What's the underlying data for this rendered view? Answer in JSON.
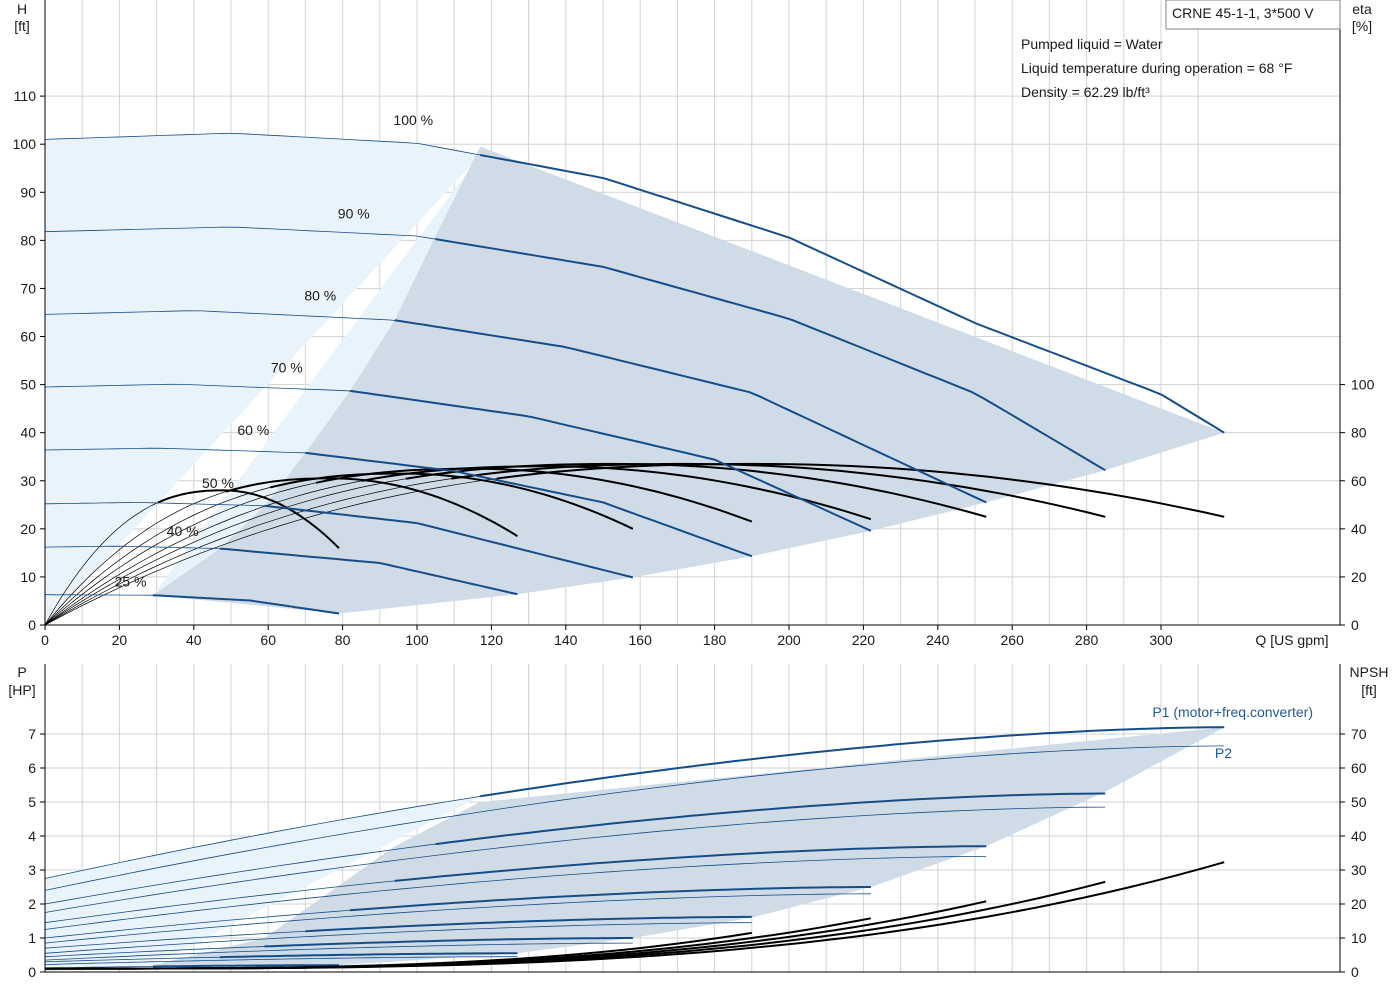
{
  "colors": {
    "curve_blue": "#154d88",
    "region_light": "#e9f3fb",
    "region_dark": "#cfdce8",
    "grid": "#d3d3d3",
    "black": "#000000"
  },
  "info": {
    "model": "CRNE 45-1-1, 3*500 V",
    "liquid": "Pumped liquid = Water",
    "temperature": "Liquid temperature during operation = 68 °F",
    "density": "Density = 62.29 lb/ft³"
  },
  "chart_data": [
    {
      "type": "line",
      "id": "head",
      "xlabel": "Q [US gpm]",
      "ylabel": [
        "H",
        "[ft]"
      ],
      "y2label": [
        "eta",
        "[%]"
      ],
      "xlim": [
        0,
        348
      ],
      "ylim": [
        0,
        120
      ],
      "y2lim": [
        0,
        120
      ],
      "grid": true,
      "xticks": [
        0,
        20,
        40,
        60,
        80,
        100,
        120,
        140,
        160,
        180,
        200,
        220,
        240,
        260,
        280,
        300
      ],
      "yticks": [
        0,
        10,
        20,
        30,
        40,
        50,
        60,
        70,
        80,
        90,
        100,
        110
      ],
      "y2ticks": [
        0,
        20,
        40,
        60,
        80,
        100
      ],
      "speed_labels": [
        {
          "text": "100 %",
          "x": 99,
          "y": 104
        },
        {
          "text": "90 %",
          "x": 83,
          "y": 84.5
        },
        {
          "text": "80 %",
          "x": 74,
          "y": 67.5
        },
        {
          "text": "70 %",
          "x": 65,
          "y": 52.5
        },
        {
          "text": "60 %",
          "x": 56,
          "y": 39.5
        },
        {
          "text": "50 %",
          "x": 46.5,
          "y": 28.5
        },
        {
          "text": "40 %",
          "x": 37,
          "y": 18.5
        },
        {
          "text": "25 %",
          "x": 23,
          "y": 8
        }
      ],
      "series": [
        {
          "speed": 100,
          "kind": "head",
          "h0": 101,
          "qmax": 317,
          "qpeak": 50,
          "qop": 117,
          "points": [
            [
              0,
              101
            ],
            [
              50,
              102.3
            ],
            [
              100,
              100.2
            ],
            [
              150,
              93
            ],
            [
              200,
              80.6
            ],
            [
              250,
              62.8
            ],
            [
              300,
              48
            ],
            [
              317,
              40
            ]
          ]
        },
        {
          "speed": 90,
          "kind": "head",
          "h0": 81.8,
          "qmax": 285,
          "qpeak": 45,
          "qop": 105,
          "points": [
            [
              0,
              81.8
            ],
            [
              50,
              82.8
            ],
            [
              100,
              80.9
            ],
            [
              150,
              74.5
            ],
            [
              200,
              63.7
            ],
            [
              250,
              48.2
            ],
            [
              285,
              32.2
            ]
          ]
        },
        {
          "speed": 80,
          "kind": "head",
          "h0": 64.6,
          "qmax": 253,
          "qpeak": 40,
          "qop": 94,
          "points": [
            [
              0,
              64.6
            ],
            [
              40,
              65.4
            ],
            [
              94,
              63.4
            ],
            [
              140,
              57.8
            ],
            [
              190,
              48.3
            ],
            [
              253,
              25.5
            ]
          ]
        },
        {
          "speed": 70,
          "kind": "head",
          "h0": 49.5,
          "qmax": 222,
          "qpeak": 35,
          "qop": 82,
          "points": [
            [
              0,
              49.5
            ],
            [
              35,
              50.1
            ],
            [
              82,
              48.7
            ],
            [
              130,
              43.4
            ],
            [
              180,
              34.4
            ],
            [
              222,
              19.6
            ]
          ]
        },
        {
          "speed": 60,
          "kind": "head",
          "h0": 36.4,
          "qmax": 190,
          "qpeak": 30,
          "qop": 70,
          "points": [
            [
              0,
              36.4
            ],
            [
              30,
              36.8
            ],
            [
              70,
              35.8
            ],
            [
              110,
              32
            ],
            [
              150,
              25.5
            ],
            [
              190,
              14.3
            ]
          ]
        },
        {
          "speed": 50,
          "kind": "head",
          "h0": 25.2,
          "qmax": 158,
          "qpeak": 25,
          "qop": 59,
          "points": [
            [
              0,
              25.2
            ],
            [
              25,
              25.5
            ],
            [
              59,
              24.8
            ],
            [
              100,
              21.2
            ],
            [
              158,
              9.9
            ]
          ]
        },
        {
          "speed": 40,
          "kind": "head",
          "h0": 16.2,
          "qmax": 127,
          "qpeak": 20,
          "qop": 47,
          "points": [
            [
              0,
              16.2
            ],
            [
              20,
              16.4
            ],
            [
              47,
              15.9
            ],
            [
              90,
              12.9
            ],
            [
              127,
              6.4
            ]
          ]
        },
        {
          "speed": 25,
          "kind": "head",
          "h0": 6.3,
          "qmax": 79,
          "qpeak": 12.5,
          "qop": 29,
          "points": [
            [
              0,
              6.3
            ],
            [
              29,
              6.2
            ],
            [
              55,
              5.1
            ],
            [
              79,
              2.4
            ]
          ]
        }
      ],
      "efficiency_curves": [
        {
          "speed": 100,
          "qmax": 317,
          "eta_peak": 67,
          "q_best": 192,
          "eta_end": 45
        },
        {
          "speed": 90,
          "qmax": 285,
          "eta_peak": 67,
          "q_best": 173,
          "eta_end": 45
        },
        {
          "speed": 80,
          "qmax": 253,
          "eta_peak": 67,
          "q_best": 154,
          "eta_end": 45
        },
        {
          "speed": 70,
          "qmax": 222,
          "eta_peak": 66,
          "q_best": 135,
          "eta_end": 44
        },
        {
          "speed": 60,
          "qmax": 190,
          "eta_peak": 65,
          "q_best": 115,
          "eta_end": 43
        },
        {
          "speed": 50,
          "qmax": 158,
          "eta_peak": 63,
          "q_best": 96,
          "eta_end": 40
        },
        {
          "speed": 40,
          "qmax": 127,
          "eta_peak": 61,
          "q_best": 77,
          "eta_end": 37
        },
        {
          "speed": 25,
          "qmax": 79,
          "eta_peak": 56,
          "q_best": 48,
          "eta_end": 32
        }
      ],
      "operating_region": [
        [
          29,
          6.2
        ],
        [
          47,
          15.9
        ],
        [
          59,
          24.8
        ],
        [
          70,
          35.8
        ],
        [
          82,
          48.7
        ],
        [
          94,
          63.4
        ],
        [
          105,
          80.9
        ],
        [
          117,
          99.5
        ],
        [
          317,
          40
        ],
        [
          285,
          32.2
        ],
        [
          253,
          25.5
        ],
        [
          222,
          19.6
        ],
        [
          190,
          14.3
        ],
        [
          158,
          9.9
        ],
        [
          127,
          6.4
        ],
        [
          79,
          2.4
        ]
      ]
    },
    {
      "type": "line",
      "id": "power",
      "xlabel": "",
      "ylabel": [
        "P",
        "[HP]"
      ],
      "y2label": [
        "NPSH",
        "[ft]"
      ],
      "xlim": [
        0,
        348
      ],
      "ylim": [
        0,
        8
      ],
      "y2lim": [
        0,
        80
      ],
      "grid": true,
      "xticks": [
        0,
        20,
        40,
        60,
        80,
        100,
        120,
        140,
        160,
        180,
        200,
        220,
        240,
        260,
        280,
        300
      ],
      "yticks": [
        0,
        1,
        2,
        3,
        4,
        5,
        6,
        7
      ],
      "y2ticks": [
        0,
        10,
        20,
        30,
        40,
        50,
        60,
        70
      ],
      "labels": {
        "p1": "P1 (motor+freq.converter)",
        "p2": "P2"
      },
      "series": [
        {
          "name": "P1 (motor+freq.converter)",
          "speed": 100,
          "p_start": 2.75,
          "p_end": 7.2,
          "qop": 117,
          "qmax": 317
        },
        {
          "name": "P2",
          "speed": 100,
          "p_start": 2.4,
          "p_end": 6.65,
          "qmax": 317
        },
        {
          "speed": 90,
          "kind": "P1",
          "p_start": 2.0,
          "p_end": 5.25,
          "qop": 105,
          "qmax": 285
        },
        {
          "speed": 90,
          "kind": "P2",
          "p_start": 1.75,
          "p_end": 4.85,
          "qmax": 285
        },
        {
          "speed": 80,
          "kind": "P1",
          "p_start": 1.45,
          "p_end": 3.7,
          "qop": 94,
          "qmax": 253
        },
        {
          "speed": 80,
          "kind": "P2",
          "p_start": 1.25,
          "p_end": 3.4,
          "qmax": 253
        },
        {
          "speed": 70,
          "kind": "P1",
          "p_start": 1.0,
          "p_end": 2.5,
          "qop": 82,
          "qmax": 222
        },
        {
          "speed": 70,
          "kind": "P2",
          "p_start": 0.85,
          "p_end": 2.3,
          "qmax": 222
        },
        {
          "speed": 60,
          "kind": "P1",
          "p_start": 0.7,
          "p_end": 1.62,
          "qop": 70,
          "qmax": 190
        },
        {
          "speed": 60,
          "kind": "P2",
          "p_start": 0.55,
          "p_end": 1.45,
          "qmax": 190
        },
        {
          "speed": 50,
          "kind": "P1",
          "p_start": 0.45,
          "p_end": 1.0,
          "qop": 59,
          "qmax": 158
        },
        {
          "speed": 50,
          "kind": "P2",
          "p_start": 0.35,
          "p_end": 0.85,
          "qmax": 158
        },
        {
          "speed": 40,
          "kind": "P1",
          "p_start": 0.3,
          "p_end": 0.55,
          "qop": 47,
          "qmax": 127
        },
        {
          "speed": 40,
          "kind": "P2",
          "p_start": 0.22,
          "p_end": 0.45,
          "qmax": 127
        },
        {
          "speed": 25,
          "kind": "P1",
          "p_start": 0.12,
          "p_end": 0.2,
          "qop": 29,
          "qmax": 79
        },
        {
          "speed": 25,
          "kind": "P2",
          "p_start": 0.08,
          "p_end": 0.15,
          "qmax": 79
        }
      ],
      "npsh_curves": [
        {
          "qmax": 317,
          "npsh_end": 32.3,
          "npsh_at_200": 10.6
        },
        {
          "qmax": 285,
          "npsh_end": 26.5,
          "npsh_at_200": 12
        },
        {
          "qmax": 253,
          "npsh_end": 20.8,
          "npsh_at_200": 11
        },
        {
          "qmax": 222,
          "npsh_end": 15.8,
          "npsh_at_200": 11
        },
        {
          "qmax": 190,
          "npsh_end": 11.5,
          "npsh_at_200": 9
        }
      ],
      "operating_region": [
        [
          29,
          0.2
        ],
        [
          59,
          1.0
        ],
        [
          94,
          3.7
        ],
        [
          117,
          5.0
        ],
        [
          317,
          7.2
        ],
        [
          285,
          5.3
        ],
        [
          253,
          3.7
        ],
        [
          222,
          2.5
        ],
        [
          190,
          1.6
        ],
        [
          158,
          1.0
        ],
        [
          127,
          0.55
        ],
        [
          79,
          0.2
        ]
      ]
    }
  ]
}
